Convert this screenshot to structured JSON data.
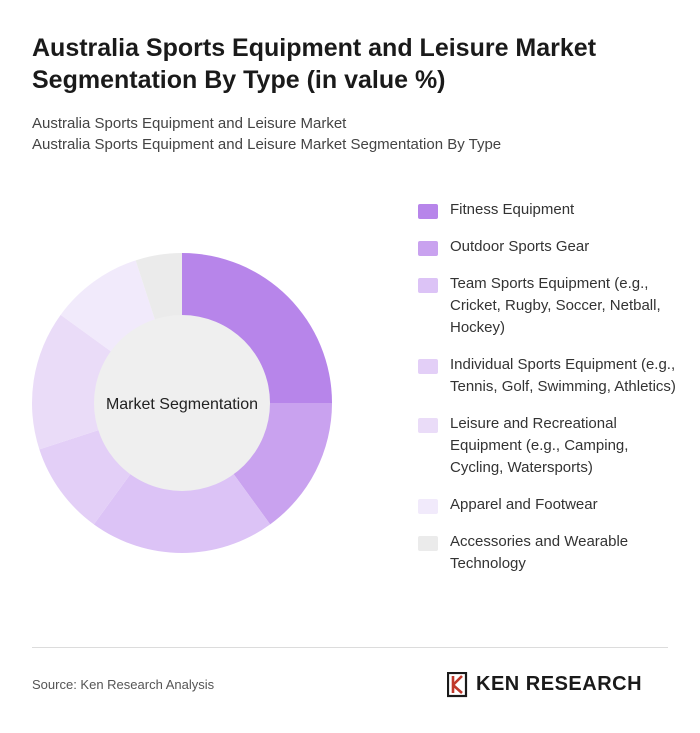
{
  "header": {
    "title": "Australia Sports Equipment and Leisure Market Segmentation By Type (in value %)",
    "subtitle_line1": "Australia Sports Equipment and Leisure Market",
    "subtitle_line2": "Australia Sports Equipment and Leisure Market Segmentation By Type"
  },
  "chart_data": {
    "type": "pie",
    "variant": "donut",
    "center_label": "Market Segmentation",
    "legend_position": "right",
    "categories": [
      "Fitness Equipment",
      "Outdoor Sports Gear",
      "Team Sports Equipment (e.g., Cricket, Rugby, Soccer, Netball, Hockey)",
      "Individual Sports Equipment (e.g., Tennis, Golf, Swimming, Athletics)",
      "Leisure and Recreational Equipment (e.g., Camping, Cycling, Watersports)",
      "Apparel and Footwear",
      "Accessories and Wearable Technology"
    ],
    "values": [
      25,
      15,
      20,
      10,
      15,
      10,
      5
    ],
    "colors": [
      "#b785ea",
      "#c9a2ef",
      "#dcc3f6",
      "#e3cff7",
      "#eadcf8",
      "#f1eafb",
      "#ebebeb"
    ]
  },
  "footer": {
    "source": "Source: Ken Research Analysis",
    "brand": "KEN RESEARCH"
  }
}
